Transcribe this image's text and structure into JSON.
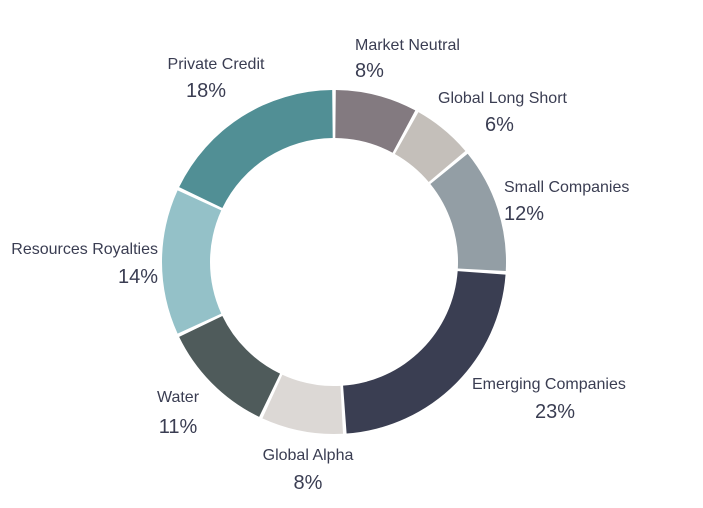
{
  "chart_data": {
    "type": "pie",
    "variant": "donut",
    "title": "",
    "legend": "none",
    "slices": [
      {
        "name": "Market Neutral",
        "value": 8,
        "label": "8%",
        "color": "#837a80"
      },
      {
        "name": "Global Long Short",
        "value": 6,
        "label": "6%",
        "color": "#c4bfba"
      },
      {
        "name": "Small Companies",
        "value": 12,
        "label": "12%",
        "color": "#939ea5"
      },
      {
        "name": "Emerging Companies",
        "value": 23,
        "label": "23%",
        "color": "#3a3e52"
      },
      {
        "name": "Global Alpha",
        "value": 8,
        "label": "8%",
        "color": "#dcd8d5"
      },
      {
        "name": "Water",
        "value": 11,
        "label": "11%",
        "color": "#4f5b5b"
      },
      {
        "name": "Resources Royalties",
        "value": 14,
        "label": "14%",
        "color": "#94c1c8"
      },
      {
        "name": "Private Credit",
        "value": 18,
        "label": "18%",
        "color": "#518f95"
      }
    ]
  }
}
